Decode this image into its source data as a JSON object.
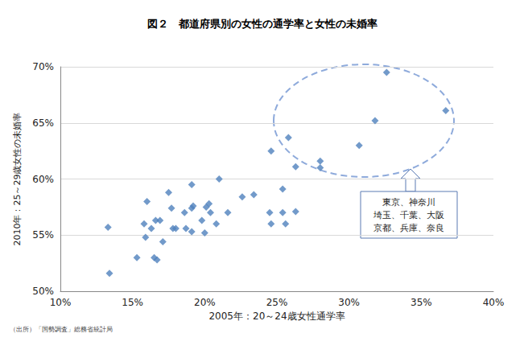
{
  "chart_data": {
    "type": "scatter",
    "title": "図２　都道府県別の女性の通学率と女性の未婚率",
    "x_label": "2005年：20～24歳女性通学率",
    "y_label": "2010年：25～29歳女性の未婚率",
    "source": "（出所）「国勢調査」総務省統計局",
    "annotation": [
      "東京、神奈川",
      "埼玉、千葉、大阪",
      "京都、兵庫、奈良"
    ],
    "color": "#4f81bd",
    "marker": "diamond",
    "grid": "y",
    "x": [
      32.6,
      36.7,
      31.8,
      30.7,
      25.8,
      24.6,
      28.0,
      28.0,
      26.3,
      25.4,
      24.5,
      25.4,
      26.3,
      24.6,
      25.6,
      23.4,
      22.6,
      21.0,
      21.6,
      20.8,
      20.3,
      20.1,
      20.4,
      19.8,
      20.0,
      19.1,
      19.2,
      19.1,
      18.6,
      18.7,
      19.1,
      18.0,
      17.8,
      17.5,
      17.7,
      16.9,
      16.6,
      16.0,
      15.8,
      15.9,
      16.3,
      17.1,
      16.5,
      16.7,
      15.3,
      13.3,
      13.4
    ],
    "values": [
      69.5,
      66.1,
      65.2,
      63.0,
      63.7,
      62.5,
      61.6,
      61.0,
      61.1,
      59.1,
      57.0,
      57.0,
      57.1,
      56.0,
      56.0,
      58.6,
      58.4,
      60.0,
      57.0,
      56.0,
      57.8,
      57.5,
      57.0,
      56.3,
      55.2,
      59.5,
      57.6,
      57.4,
      57.0,
      55.6,
      55.3,
      55.6,
      55.6,
      58.8,
      57.4,
      56.3,
      56.3,
      58.0,
      56.0,
      54.8,
      55.6,
      54.4,
      53.0,
      52.8,
      53.0,
      55.7,
      51.6
    ],
    "xlim": [
      10,
      40
    ],
    "xticks": [
      {
        "value": 10,
        "label": "10%"
      },
      {
        "value": 15,
        "label": "15%"
      },
      {
        "value": 20,
        "label": "20%"
      },
      {
        "value": 25,
        "label": "25%"
      },
      {
        "value": 30,
        "label": "30%"
      },
      {
        "value": 35,
        "label": "35%"
      },
      {
        "value": 40,
        "label": "40%"
      }
    ],
    "ylim": [
      50,
      70
    ],
    "yticks": [
      {
        "value": 50,
        "label": "50%"
      },
      {
        "value": 55,
        "label": "55%"
      },
      {
        "value": 60,
        "label": "60%"
      },
      {
        "value": 65,
        "label": "65%"
      },
      {
        "value": 70,
        "label": "70%"
      }
    ]
  }
}
